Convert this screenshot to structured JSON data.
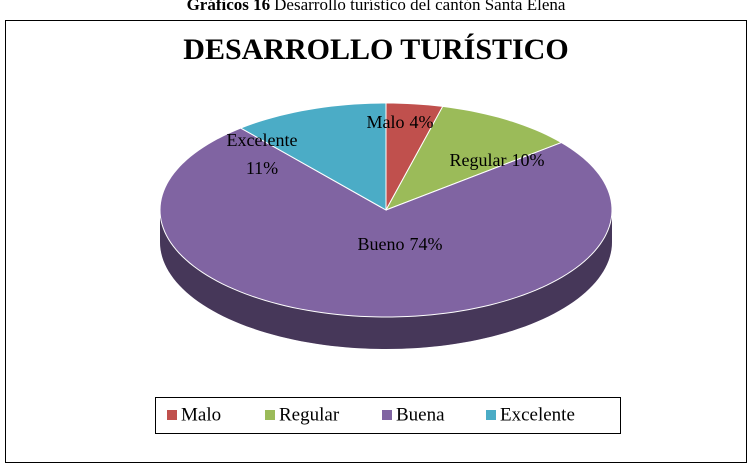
{
  "chart_data": {
    "type": "pie",
    "caption_label": "Gráficos 16",
    "caption": "Desarrollo turístico del cantón Santa Elena",
    "title": "DESARROLLO TURÍSTICO",
    "categories": [
      "Malo",
      "Regular",
      "Buena",
      "Excelente"
    ],
    "slice_names": [
      "Malo",
      "Regular",
      "Bueno",
      "Excelente"
    ],
    "values": [
      4,
      10,
      74,
      11
    ],
    "value_labels": [
      "4%",
      "10%",
      "74%",
      "11%"
    ],
    "colors": [
      "#c0504d",
      "#9bbb59",
      "#8064a2",
      "#4bacc6"
    ],
    "legend": "bottom"
  }
}
